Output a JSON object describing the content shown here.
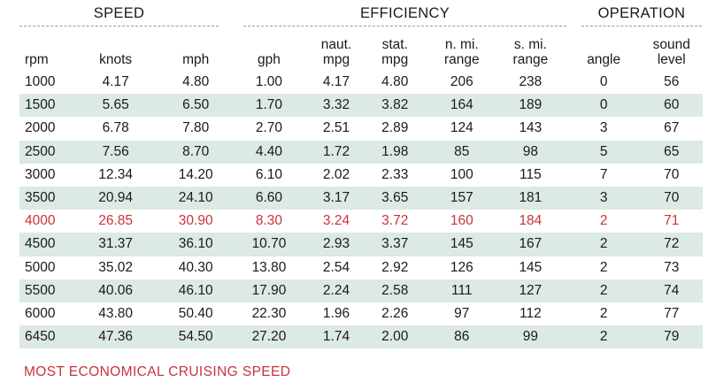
{
  "groups": {
    "speed": "SPEED",
    "efficiency": "EFFICIENCY",
    "operation": "OPERATION"
  },
  "columns": [
    [
      "rpm"
    ],
    [
      "knots"
    ],
    [
      "mph"
    ],
    [
      "gph"
    ],
    [
      "naut.",
      "mpg"
    ],
    [
      "stat.",
      "mpg"
    ],
    [
      "n. mi.",
      "range"
    ],
    [
      "s. mi.",
      "range"
    ],
    [
      "angle"
    ],
    [
      "sound",
      "level"
    ]
  ],
  "rows": [
    [
      "1000",
      "4.17",
      "4.80",
      "1.00",
      "4.17",
      "4.80",
      "206",
      "238",
      "0",
      "56"
    ],
    [
      "1500",
      "5.65",
      "6.50",
      "1.70",
      "3.32",
      "3.82",
      "164",
      "189",
      "0",
      "60"
    ],
    [
      "2000",
      "6.78",
      "7.80",
      "2.70",
      "2.51",
      "2.89",
      "124",
      "143",
      "3",
      "67"
    ],
    [
      "2500",
      "7.56",
      "8.70",
      "4.40",
      "1.72",
      "1.98",
      "85",
      "98",
      "5",
      "65"
    ],
    [
      "3000",
      "12.34",
      "14.20",
      "6.10",
      "2.02",
      "2.33",
      "100",
      "115",
      "7",
      "70"
    ],
    [
      "3500",
      "20.94",
      "24.10",
      "6.60",
      "3.17",
      "3.65",
      "157",
      "181",
      "3",
      "70"
    ],
    [
      "4000",
      "26.85",
      "30.90",
      "8.30",
      "3.24",
      "3.72",
      "160",
      "184",
      "2",
      "71"
    ],
    [
      "4500",
      "31.37",
      "36.10",
      "10.70",
      "2.93",
      "3.37",
      "145",
      "167",
      "2",
      "72"
    ],
    [
      "5000",
      "35.02",
      "40.30",
      "13.80",
      "2.54",
      "2.92",
      "126",
      "145",
      "2",
      "73"
    ],
    [
      "5500",
      "40.06",
      "46.10",
      "17.90",
      "2.24",
      "2.58",
      "111",
      "127",
      "2",
      "74"
    ],
    [
      "6000",
      "43.80",
      "50.40",
      "22.30",
      "1.96",
      "2.26",
      "97",
      "112",
      "2",
      "77"
    ],
    [
      "6450",
      "47.36",
      "54.50",
      "27.20",
      "1.74",
      "2.00",
      "86",
      "99",
      "2",
      "79"
    ]
  ],
  "highlight_rpm": "4000",
  "highlight_color": "#c8343c",
  "stripe_color": "#dde9e3",
  "footnote": "MOST ECONOMICAL CRUISING SPEED"
}
